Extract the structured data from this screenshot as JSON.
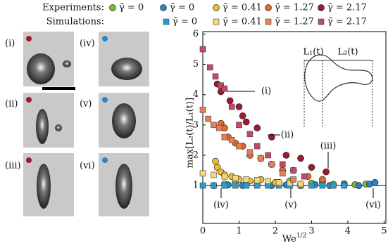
{
  "panels": [
    {
      "label": "(i)"
    },
    {
      "label": "(iv)"
    },
    {
      "label": "(ii)"
    },
    {
      "label": "(v)"
    },
    {
      "label": "(iii)"
    },
    {
      "label": "(vi)"
    }
  ],
  "chart_data": {
    "type": "scatter",
    "legend_groups": [
      "Experiments:",
      "Simulations:"
    ],
    "x_label": {
      "base": "We",
      "sup": "1/2"
    },
    "y_label": "max[L₂(t)/L₁(t)]",
    "xlim": [
      0,
      5.05
    ],
    "xticks": [
      0,
      1,
      2,
      3,
      4,
      5
    ],
    "ylim": [
      -0.25,
      6.08
    ],
    "yticks": [
      1,
      2,
      3,
      4,
      5,
      6
    ],
    "annotations": [
      "(i)",
      "(ii)",
      "(iii)",
      "(iv)",
      "(v)",
      "(vi)"
    ],
    "inset_labels": [
      "L₁(t)",
      "L₂(t)"
    ],
    "series": [
      {
        "name": "γ̃ = 0",
        "group": 0,
        "marker": "circle",
        "color": "#79bd3c",
        "x": [
          0.6,
          0.9,
          1.2,
          1.5,
          1.8,
          2.1,
          2.4,
          2.7,
          3.0,
          3.3,
          3.6,
          3.9,
          4.2,
          4.5
        ],
        "values": [
          1.05,
          1.1,
          1.08,
          1.12,
          1.06,
          1.1,
          1.15,
          1.05,
          1.08,
          1.1,
          1.04,
          1.06,
          1.03,
          1.05
        ]
      },
      {
        "name": "γ̃ = 0",
        "group": 0,
        "marker": "circle",
        "color": "#2a84c6",
        "x": [
          0.3,
          0.7,
          1.1,
          1.5,
          1.9,
          2.3,
          2.7,
          3.1,
          3.5,
          3.9,
          4.3,
          4.6,
          4.75
        ],
        "values": [
          1.0,
          1.02,
          1.0,
          1.03,
          1.0,
          1.02,
          1.0,
          1.03,
          1.0,
          1.02,
          1.0,
          1.05,
          1.1
        ]
      },
      {
        "name": "γ̃ = 0.41",
        "group": 0,
        "marker": "circle",
        "color": "#f0be2a",
        "x": [
          0.35,
          0.4,
          0.5,
          0.6,
          0.8,
          1.0,
          1.3,
          1.6,
          2.0,
          2.4
        ],
        "values": [
          1.8,
          1.6,
          1.45,
          1.35,
          1.3,
          1.2,
          1.15,
          1.2,
          1.1,
          1.05
        ]
      },
      {
        "name": "γ̃ = 1.27",
        "group": 0,
        "marker": "circle",
        "color": "#e4682a",
        "x": [
          0.5,
          0.6,
          0.7,
          0.9,
          1.1,
          1.3,
          1.6,
          1.9,
          2.2,
          2.5,
          2.9,
          3.3
        ],
        "values": [
          3.05,
          2.9,
          2.6,
          2.4,
          2.3,
          2.0,
          1.9,
          1.7,
          1.5,
          1.5,
          1.3,
          1.2
        ]
      },
      {
        "name": "γ̃ = 2.17",
        "group": 0,
        "marker": "circle",
        "color": "#9e1b2e",
        "x": [
          0.4,
          0.5,
          0.75,
          1.0,
          1.1,
          1.2,
          1.5,
          1.9,
          2.3,
          2.7,
          3.0,
          3.4
        ],
        "values": [
          4.35,
          4.1,
          3.8,
          3.6,
          3.3,
          3.1,
          2.9,
          2.6,
          2.0,
          1.9,
          1.6,
          1.45
        ]
      },
      {
        "name": "γ̃ = 0",
        "group": 1,
        "marker": "square",
        "color": "#1ea0d6",
        "x": [
          0.0,
          0.3,
          0.6,
          0.9,
          1.2,
          1.5,
          1.8,
          2.1,
          2.4,
          2.7,
          3.0,
          3.3,
          3.6,
          3.9
        ],
        "values": [
          1.0,
          1.0,
          1.0,
          1.0,
          1.0,
          1.0,
          1.0,
          1.0,
          1.0,
          1.0,
          1.0,
          1.0,
          1.0,
          1.0
        ]
      },
      {
        "name": "γ̃ = 0.41",
        "group": 1,
        "marker": "square",
        "color": "#f5d47a",
        "x": [
          0.0,
          0.3,
          0.6,
          0.9,
          1.2,
          1.5,
          1.8,
          2.1,
          2.4,
          2.7
        ],
        "values": [
          1.4,
          1.35,
          1.3,
          1.25,
          1.2,
          1.18,
          1.15,
          1.1,
          1.08,
          1.05
        ]
      },
      {
        "name": "γ̃ = 1.27",
        "group": 1,
        "marker": "square",
        "color": "#e57f55",
        "x": [
          0.0,
          0.15,
          0.3,
          0.45,
          0.6,
          0.8,
          1.0,
          1.3,
          1.6,
          1.9,
          2.2,
          2.5
        ],
        "values": [
          3.5,
          3.2,
          3.0,
          2.9,
          2.6,
          2.5,
          2.3,
          2.1,
          1.9,
          1.7,
          1.4,
          1.2
        ]
      },
      {
        "name": "γ̃ = 2.17",
        "group": 1,
        "marker": "square",
        "color": "#c04a69",
        "x": [
          0.0,
          0.2,
          0.35,
          0.5,
          0.6,
          0.8,
          1.0,
          1.3,
          1.5,
          1.8,
          2.2,
          2.5,
          2.8
        ],
        "values": [
          5.5,
          4.9,
          4.6,
          4.3,
          4.2,
          3.6,
          3.0,
          2.7,
          2.3,
          2.0,
          1.7,
          1.5,
          1.3
        ]
      }
    ]
  }
}
